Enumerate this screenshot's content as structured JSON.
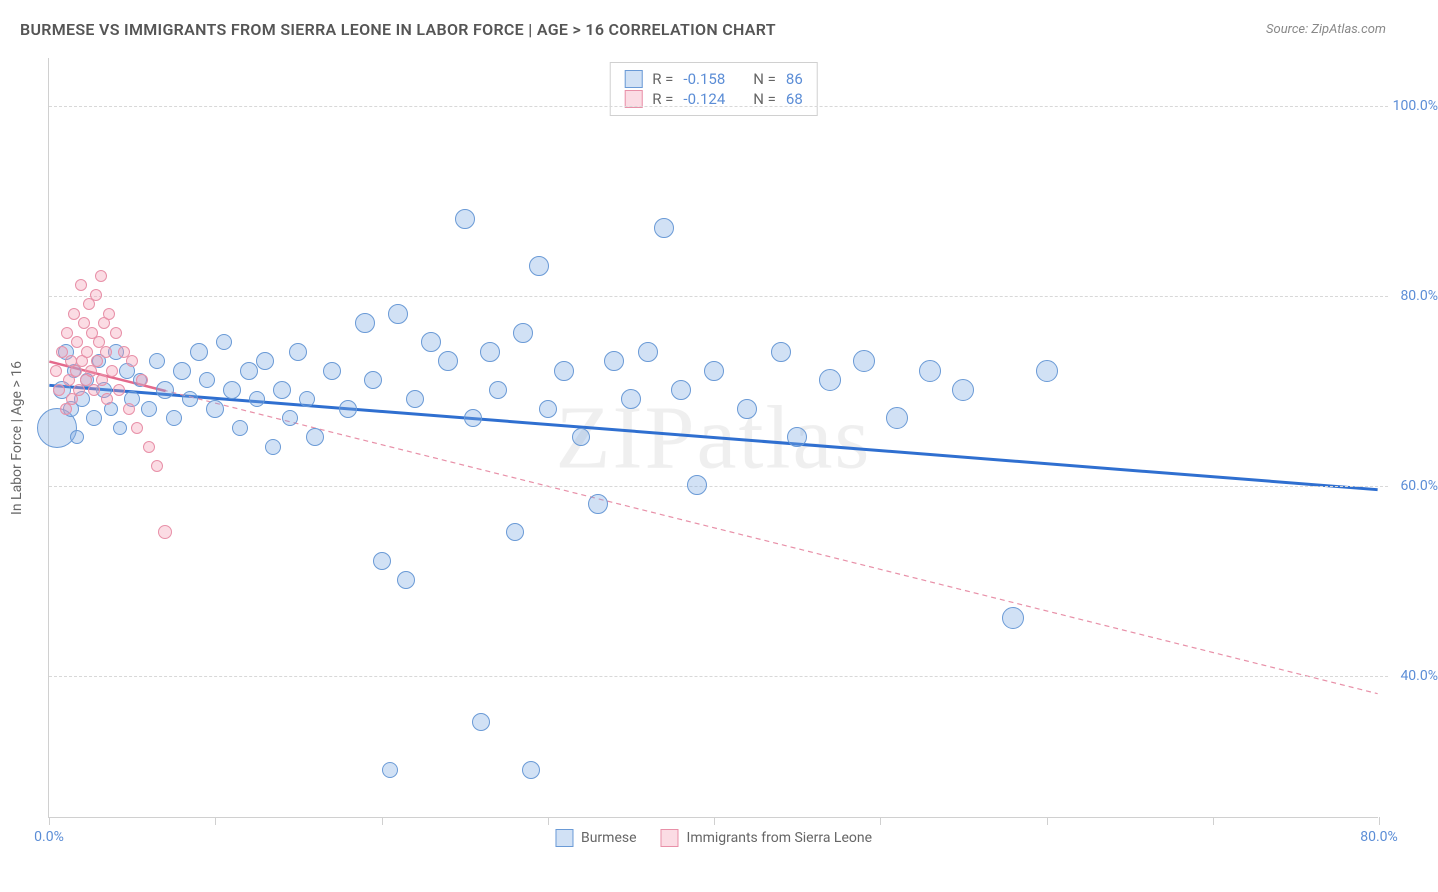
{
  "title": "BURMESE VS IMMIGRANTS FROM SIERRA LEONE IN LABOR FORCE | AGE > 16 CORRELATION CHART",
  "source_label": "Source: ZipAtlas.com",
  "watermark": "ZIPatlas",
  "y_axis_title": "In Labor Force | Age > 16",
  "chart": {
    "type": "scatter",
    "background_color": "#ffffff",
    "grid_color": "#d8d8d8",
    "axis_color": "#d0d0d0",
    "tick_label_color": "#5b8dd6",
    "xlim": [
      0,
      80
    ],
    "ylim": [
      25,
      105
    ],
    "x_ticks": [
      0,
      10,
      20,
      30,
      40,
      50,
      60,
      70,
      80
    ],
    "x_tick_labels": {
      "0": "0.0%",
      "80": "80.0%"
    },
    "y_ticks": [
      40,
      60,
      80,
      100
    ],
    "y_tick_labels": {
      "40": "40.0%",
      "60": "60.0%",
      "80": "80.0%",
      "100": "100.0%"
    },
    "series": [
      {
        "id": "burmese",
        "label": "Burmese",
        "fill": "rgba(122,168,227,0.35)",
        "stroke": "#6a9ad6",
        "stroke_width": 1,
        "trend": {
          "x1": 0,
          "y1": 70.5,
          "x2": 80,
          "y2": 59.5,
          "color": "#2f6fd0",
          "width": 3,
          "dash": "none"
        },
        "R": "-0.158",
        "N": "86",
        "points": [
          {
            "x": 0.5,
            "y": 66,
            "r": 20
          },
          {
            "x": 0.8,
            "y": 70,
            "r": 9
          },
          {
            "x": 1.0,
            "y": 74,
            "r": 8
          },
          {
            "x": 1.3,
            "y": 68,
            "r": 8
          },
          {
            "x": 1.5,
            "y": 72,
            "r": 7
          },
          {
            "x": 1.7,
            "y": 65,
            "r": 7
          },
          {
            "x": 2.0,
            "y": 69,
            "r": 8
          },
          {
            "x": 2.3,
            "y": 71,
            "r": 7
          },
          {
            "x": 2.7,
            "y": 67,
            "r": 8
          },
          {
            "x": 3.0,
            "y": 73,
            "r": 7
          },
          {
            "x": 3.3,
            "y": 70,
            "r": 8
          },
          {
            "x": 3.7,
            "y": 68,
            "r": 7
          },
          {
            "x": 4.0,
            "y": 74,
            "r": 8
          },
          {
            "x": 4.3,
            "y": 66,
            "r": 7
          },
          {
            "x": 4.7,
            "y": 72,
            "r": 8
          },
          {
            "x": 5.0,
            "y": 69,
            "r": 8
          },
          {
            "x": 5.5,
            "y": 71,
            "r": 7
          },
          {
            "x": 6.0,
            "y": 68,
            "r": 8
          },
          {
            "x": 6.5,
            "y": 73,
            "r": 8
          },
          {
            "x": 7.0,
            "y": 70,
            "r": 9
          },
          {
            "x": 7.5,
            "y": 67,
            "r": 8
          },
          {
            "x": 8.0,
            "y": 72,
            "r": 9
          },
          {
            "x": 8.5,
            "y": 69,
            "r": 8
          },
          {
            "x": 9.0,
            "y": 74,
            "r": 9
          },
          {
            "x": 9.5,
            "y": 71,
            "r": 8
          },
          {
            "x": 10.0,
            "y": 68,
            "r": 9
          },
          {
            "x": 10.5,
            "y": 75,
            "r": 8
          },
          {
            "x": 11.0,
            "y": 70,
            "r": 9
          },
          {
            "x": 11.5,
            "y": 66,
            "r": 8
          },
          {
            "x": 12.0,
            "y": 72,
            "r": 9
          },
          {
            "x": 12.5,
            "y": 69,
            "r": 8
          },
          {
            "x": 13.0,
            "y": 73,
            "r": 9
          },
          {
            "x": 13.5,
            "y": 64,
            "r": 8
          },
          {
            "x": 14.0,
            "y": 70,
            "r": 9
          },
          {
            "x": 14.5,
            "y": 67,
            "r": 8
          },
          {
            "x": 15.0,
            "y": 74,
            "r": 9
          },
          {
            "x": 15.5,
            "y": 69,
            "r": 8
          },
          {
            "x": 16.0,
            "y": 65,
            "r": 9
          },
          {
            "x": 17.0,
            "y": 72,
            "r": 9
          },
          {
            "x": 18.0,
            "y": 68,
            "r": 9
          },
          {
            "x": 19.0,
            "y": 77,
            "r": 10
          },
          {
            "x": 19.5,
            "y": 71,
            "r": 9
          },
          {
            "x": 20.0,
            "y": 52,
            "r": 9
          },
          {
            "x": 20.5,
            "y": 30,
            "r": 8
          },
          {
            "x": 21.0,
            "y": 78,
            "r": 10
          },
          {
            "x": 21.5,
            "y": 50,
            "r": 9
          },
          {
            "x": 22.0,
            "y": 69,
            "r": 9
          },
          {
            "x": 23.0,
            "y": 75,
            "r": 10
          },
          {
            "x": 24.0,
            "y": 73,
            "r": 10
          },
          {
            "x": 25.0,
            "y": 88,
            "r": 10
          },
          {
            "x": 25.5,
            "y": 67,
            "r": 9
          },
          {
            "x": 26.0,
            "y": 35,
            "r": 9
          },
          {
            "x": 26.5,
            "y": 74,
            "r": 10
          },
          {
            "x": 27.0,
            "y": 70,
            "r": 9
          },
          {
            "x": 28.0,
            "y": 55,
            "r": 9
          },
          {
            "x": 28.5,
            "y": 76,
            "r": 10
          },
          {
            "x": 29.0,
            "y": 30,
            "r": 9
          },
          {
            "x": 29.5,
            "y": 83,
            "r": 10
          },
          {
            "x": 30.0,
            "y": 68,
            "r": 9
          },
          {
            "x": 31.0,
            "y": 72,
            "r": 10
          },
          {
            "x": 32.0,
            "y": 65,
            "r": 9
          },
          {
            "x": 33.0,
            "y": 58,
            "r": 10
          },
          {
            "x": 34.0,
            "y": 73,
            "r": 10
          },
          {
            "x": 35.0,
            "y": 69,
            "r": 10
          },
          {
            "x": 36.0,
            "y": 74,
            "r": 10
          },
          {
            "x": 37.0,
            "y": 87,
            "r": 10
          },
          {
            "x": 38.0,
            "y": 70,
            "r": 10
          },
          {
            "x": 39.0,
            "y": 60,
            "r": 10
          },
          {
            "x": 40.0,
            "y": 72,
            "r": 10
          },
          {
            "x": 42.0,
            "y": 68,
            "r": 10
          },
          {
            "x": 44.0,
            "y": 74,
            "r": 10
          },
          {
            "x": 45.0,
            "y": 65,
            "r": 10
          },
          {
            "x": 47.0,
            "y": 71,
            "r": 11
          },
          {
            "x": 49.0,
            "y": 73,
            "r": 11
          },
          {
            "x": 51.0,
            "y": 67,
            "r": 11
          },
          {
            "x": 53.0,
            "y": 72,
            "r": 11
          },
          {
            "x": 55.0,
            "y": 70,
            "r": 11
          },
          {
            "x": 58.0,
            "y": 46,
            "r": 11
          },
          {
            "x": 60.0,
            "y": 72,
            "r": 11
          }
        ]
      },
      {
        "id": "sierra-leone",
        "label": "Immigrants from Sierra Leone",
        "fill": "rgba(244,154,178,0.35)",
        "stroke": "#e890a8",
        "stroke_width": 1,
        "trend": {
          "x1": 0,
          "y1": 73,
          "x2": 80,
          "y2": 38,
          "color": "#e890a8",
          "width": 1.2,
          "dash": "5,4"
        },
        "trend_solid": {
          "x1": 0,
          "y1": 73,
          "x2": 7,
          "y2": 69.9,
          "color": "#e46a8c",
          "width": 2.5
        },
        "R": "-0.124",
        "N": "68",
        "points": [
          {
            "x": 0.4,
            "y": 72,
            "r": 6
          },
          {
            "x": 0.6,
            "y": 70,
            "r": 6
          },
          {
            "x": 0.8,
            "y": 74,
            "r": 6
          },
          {
            "x": 1.0,
            "y": 68,
            "r": 6
          },
          {
            "x": 1.1,
            "y": 76,
            "r": 6
          },
          {
            "x": 1.2,
            "y": 71,
            "r": 6
          },
          {
            "x": 1.3,
            "y": 73,
            "r": 6
          },
          {
            "x": 1.4,
            "y": 69,
            "r": 6
          },
          {
            "x": 1.5,
            "y": 78,
            "r": 6
          },
          {
            "x": 1.6,
            "y": 72,
            "r": 6
          },
          {
            "x": 1.7,
            "y": 75,
            "r": 6
          },
          {
            "x": 1.8,
            "y": 70,
            "r": 6
          },
          {
            "x": 1.9,
            "y": 81,
            "r": 6
          },
          {
            "x": 2.0,
            "y": 73,
            "r": 6
          },
          {
            "x": 2.1,
            "y": 77,
            "r": 6
          },
          {
            "x": 2.2,
            "y": 71,
            "r": 6
          },
          {
            "x": 2.3,
            "y": 74,
            "r": 6
          },
          {
            "x": 2.4,
            "y": 79,
            "r": 6
          },
          {
            "x": 2.5,
            "y": 72,
            "r": 6
          },
          {
            "x": 2.6,
            "y": 76,
            "r": 6
          },
          {
            "x": 2.7,
            "y": 70,
            "r": 6
          },
          {
            "x": 2.8,
            "y": 80,
            "r": 6
          },
          {
            "x": 2.9,
            "y": 73,
            "r": 6
          },
          {
            "x": 3.0,
            "y": 75,
            "r": 6
          },
          {
            "x": 3.1,
            "y": 82,
            "r": 6
          },
          {
            "x": 3.2,
            "y": 71,
            "r": 6
          },
          {
            "x": 3.3,
            "y": 77,
            "r": 6
          },
          {
            "x": 3.4,
            "y": 74,
            "r": 6
          },
          {
            "x": 3.5,
            "y": 69,
            "r": 6
          },
          {
            "x": 3.6,
            "y": 78,
            "r": 6
          },
          {
            "x": 3.8,
            "y": 72,
            "r": 6
          },
          {
            "x": 4.0,
            "y": 76,
            "r": 6
          },
          {
            "x": 4.2,
            "y": 70,
            "r": 6
          },
          {
            "x": 4.5,
            "y": 74,
            "r": 6
          },
          {
            "x": 4.8,
            "y": 68,
            "r": 6
          },
          {
            "x": 5.0,
            "y": 73,
            "r": 6
          },
          {
            "x": 5.3,
            "y": 66,
            "r": 6
          },
          {
            "x": 5.6,
            "y": 71,
            "r": 6
          },
          {
            "x": 6.0,
            "y": 64,
            "r": 6
          },
          {
            "x": 6.5,
            "y": 62,
            "r": 6
          },
          {
            "x": 7.0,
            "y": 55,
            "r": 7
          }
        ]
      }
    ]
  },
  "stats_box": {
    "rows": [
      {
        "swatch_fill": "rgba(122,168,227,0.35)",
        "swatch_stroke": "#6a9ad6",
        "r_label": "R =",
        "r_val": "-0.158",
        "n_label": "N =",
        "n_val": "86"
      },
      {
        "swatch_fill": "rgba(244,154,178,0.35)",
        "swatch_stroke": "#e890a8",
        "r_label": "R =",
        "r_val": "-0.124",
        "n_label": "N =",
        "n_val": "68"
      }
    ]
  },
  "bottom_legend": [
    {
      "swatch_fill": "rgba(122,168,227,0.35)",
      "swatch_stroke": "#6a9ad6",
      "label": "Burmese"
    },
    {
      "swatch_fill": "rgba(244,154,178,0.35)",
      "swatch_stroke": "#e890a8",
      "label": "Immigrants from Sierra Leone"
    }
  ]
}
